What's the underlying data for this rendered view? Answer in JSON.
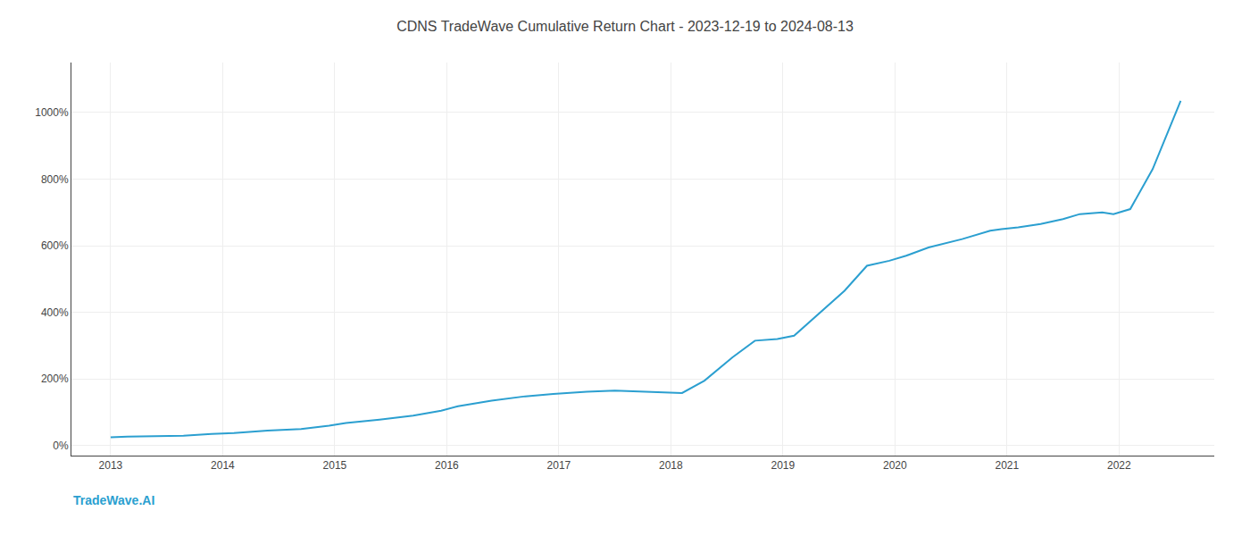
{
  "chart_data": {
    "type": "line",
    "title": "CDNS TradeWave Cumulative Return Chart - 2023-12-19 to 2024-08-13",
    "x": [
      2013.0,
      2013.15,
      2013.4,
      2013.65,
      2013.9,
      2014.1,
      2014.4,
      2014.7,
      2014.95,
      2015.1,
      2015.4,
      2015.7,
      2015.95,
      2016.1,
      2016.4,
      2016.7,
      2016.95,
      2017.05,
      2017.15,
      2017.25,
      2017.5,
      2017.75,
      2017.95,
      2018.1,
      2018.3,
      2018.55,
      2018.75,
      2018.95,
      2019.1,
      2019.3,
      2019.55,
      2019.75,
      2019.95,
      2020.1,
      2020.3,
      2020.6,
      2020.85,
      2020.95,
      2021.1,
      2021.3,
      2021.5,
      2021.65,
      2021.75,
      2021.85,
      2021.95,
      2022.1,
      2022.3,
      2022.55
    ],
    "values": [
      25,
      27,
      28,
      30,
      35,
      38,
      45,
      50,
      60,
      68,
      78,
      90,
      105,
      118,
      135,
      148,
      155,
      158,
      160,
      162,
      165,
      162,
      160,
      158,
      195,
      265,
      315,
      320,
      330,
      390,
      465,
      540,
      555,
      570,
      595,
      620,
      645,
      650,
      655,
      665,
      680,
      695,
      698,
      700,
      695,
      710,
      830,
      1035
    ],
    "color": "#2b9fd0",
    "xlim": [
      2012.65,
      2022.85
    ],
    "xticks": [
      2013,
      2014,
      2015,
      2016,
      2017,
      2018,
      2019,
      2020,
      2021,
      2022
    ],
    "ylim": [
      -30,
      1150
    ],
    "yticks": [
      {
        "value": 0,
        "label": "0%"
      },
      {
        "value": 200,
        "label": "200%"
      },
      {
        "value": 400,
        "label": "400%"
      },
      {
        "value": 600,
        "label": "600%"
      },
      {
        "value": 800,
        "label": "800%"
      },
      {
        "value": 1000,
        "label": "1000%"
      }
    ],
    "grid": true,
    "annotations": [
      {
        "text": "TradeWave.AI",
        "color": "#2b9fd0"
      }
    ]
  }
}
